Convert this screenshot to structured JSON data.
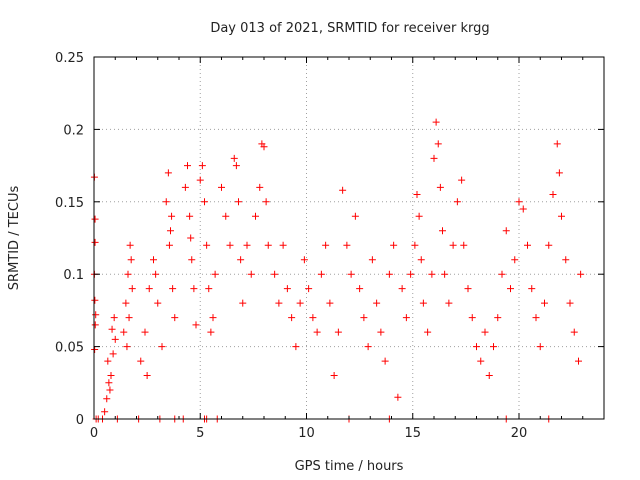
{
  "chart_data": {
    "type": "scatter",
    "title": "Day 013 of 2021, SRMTID for receiver krgg",
    "xlabel": "GPS time / hours",
    "ylabel": "SRMTID / TECUs",
    "xlim": [
      0,
      24
    ],
    "ylim": [
      0,
      0.25
    ],
    "grid": true,
    "marker": "+",
    "colors": {
      "marker": "#ff0000",
      "grid": "#a0a0a0",
      "axes": "#000000"
    },
    "x_ticks": [
      {
        "value": 0,
        "label": "0"
      },
      {
        "value": 5,
        "label": "5"
      },
      {
        "value": 10,
        "label": "10"
      },
      {
        "value": 15,
        "label": "15"
      },
      {
        "value": 20,
        "label": "20"
      }
    ],
    "y_ticks": [
      {
        "value": 0,
        "label": "0"
      },
      {
        "value": 0.05,
        "label": "0.05"
      },
      {
        "value": 0.1,
        "label": "0.1"
      },
      {
        "value": 0.15,
        "label": "0.15"
      },
      {
        "value": 0.2,
        "label": "0.2"
      },
      {
        "value": 0.25,
        "label": "0.25"
      }
    ],
    "series": [
      {
        "name": "SRMTID",
        "points": [
          [
            0.02,
            0.167
          ],
          [
            0.05,
            0.138
          ],
          [
            0.05,
            0.122
          ],
          [
            0.02,
            0.1
          ],
          [
            0.04,
            0.082
          ],
          [
            0.06,
            0.065
          ],
          [
            0.03,
            0.048
          ],
          [
            0.08,
            0.072
          ],
          [
            0.5,
            0.005
          ],
          [
            0.6,
            0.014
          ],
          [
            0.7,
            0.025
          ],
          [
            0.8,
            0.03
          ],
          [
            0.9,
            0.045
          ],
          [
            1.0,
            0.055
          ],
          [
            0.65,
            0.04
          ],
          [
            0.75,
            0.02
          ],
          [
            0.85,
            0.062
          ],
          [
            0.95,
            0.07
          ],
          [
            1.4,
            0.06
          ],
          [
            1.5,
            0.08
          ],
          [
            1.6,
            0.1
          ],
          [
            1.7,
            0.12
          ],
          [
            1.8,
            0.09
          ],
          [
            1.55,
            0.05
          ],
          [
            1.65,
            0.07
          ],
          [
            1.75,
            0.11
          ],
          [
            2.2,
            0.04
          ],
          [
            2.4,
            0.06
          ],
          [
            2.6,
            0.09
          ],
          [
            2.8,
            0.11
          ],
          [
            3.0,
            0.08
          ],
          [
            3.2,
            0.05
          ],
          [
            2.5,
            0.03
          ],
          [
            2.9,
            0.1
          ],
          [
            3.4,
            0.15
          ],
          [
            3.5,
            0.17
          ],
          [
            3.6,
            0.13
          ],
          [
            3.7,
            0.09
          ],
          [
            3.8,
            0.07
          ],
          [
            3.55,
            0.12
          ],
          [
            3.65,
            0.14
          ],
          [
            4.3,
            0.16
          ],
          [
            4.4,
            0.175
          ],
          [
            4.5,
            0.14
          ],
          [
            4.6,
            0.11
          ],
          [
            4.7,
            0.09
          ],
          [
            4.8,
            0.065
          ],
          [
            4.55,
            0.125
          ],
          [
            5.0,
            0.165
          ],
          [
            5.1,
            0.175
          ],
          [
            5.2,
            0.15
          ],
          [
            5.3,
            0.12
          ],
          [
            5.4,
            0.09
          ],
          [
            5.5,
            0.06
          ],
          [
            5.6,
            0.07
          ],
          [
            5.7,
            0.1
          ],
          [
            6.0,
            0.16
          ],
          [
            6.2,
            0.14
          ],
          [
            6.4,
            0.12
          ],
          [
            6.6,
            0.18
          ],
          [
            6.7,
            0.175
          ],
          [
            6.8,
            0.15
          ],
          [
            6.9,
            0.11
          ],
          [
            7.0,
            0.08
          ],
          [
            7.2,
            0.12
          ],
          [
            7.4,
            0.1
          ],
          [
            7.6,
            0.14
          ],
          [
            7.8,
            0.16
          ],
          [
            7.9,
            0.19
          ],
          [
            8.0,
            0.188
          ],
          [
            8.1,
            0.15
          ],
          [
            8.2,
            0.12
          ],
          [
            8.5,
            0.1
          ],
          [
            8.7,
            0.08
          ],
          [
            8.9,
            0.12
          ],
          [
            9.1,
            0.09
          ],
          [
            9.3,
            0.07
          ],
          [
            9.5,
            0.05
          ],
          [
            9.7,
            0.08
          ],
          [
            9.9,
            0.11
          ],
          [
            10.1,
            0.09
          ],
          [
            10.3,
            0.07
          ],
          [
            10.5,
            0.06
          ],
          [
            10.7,
            0.1
          ],
          [
            10.9,
            0.12
          ],
          [
            11.1,
            0.08
          ],
          [
            11.3,
            0.03
          ],
          [
            11.5,
            0.06
          ],
          [
            11.7,
            0.158
          ],
          [
            11.9,
            0.12
          ],
          [
            12.1,
            0.1
          ],
          [
            12.3,
            0.14
          ],
          [
            12.5,
            0.09
          ],
          [
            12.7,
            0.07
          ],
          [
            12.9,
            0.05
          ],
          [
            13.1,
            0.11
          ],
          [
            13.3,
            0.08
          ],
          [
            13.5,
            0.06
          ],
          [
            13.7,
            0.04
          ],
          [
            13.9,
            0.1
          ],
          [
            14.1,
            0.12
          ],
          [
            14.3,
            0.015
          ],
          [
            14.5,
            0.09
          ],
          [
            14.7,
            0.07
          ],
          [
            14.9,
            0.1
          ],
          [
            15.1,
            0.12
          ],
          [
            15.2,
            0.155
          ],
          [
            15.3,
            0.14
          ],
          [
            15.4,
            0.11
          ],
          [
            15.5,
            0.08
          ],
          [
            15.7,
            0.06
          ],
          [
            15.9,
            0.1
          ],
          [
            16.0,
            0.18
          ],
          [
            16.1,
            0.205
          ],
          [
            16.2,
            0.19
          ],
          [
            16.3,
            0.16
          ],
          [
            16.4,
            0.13
          ],
          [
            16.5,
            0.1
          ],
          [
            16.7,
            0.08
          ],
          [
            16.9,
            0.12
          ],
          [
            17.1,
            0.15
          ],
          [
            17.3,
            0.165
          ],
          [
            17.4,
            0.12
          ],
          [
            17.6,
            0.09
          ],
          [
            17.8,
            0.07
          ],
          [
            18.0,
            0.05
          ],
          [
            18.2,
            0.04
          ],
          [
            18.4,
            0.06
          ],
          [
            18.6,
            0.03
          ],
          [
            18.8,
            0.05
          ],
          [
            19.0,
            0.07
          ],
          [
            19.2,
            0.1
          ],
          [
            19.4,
            0.13
          ],
          [
            19.6,
            0.09
          ],
          [
            19.8,
            0.11
          ],
          [
            20.0,
            0.15
          ],
          [
            20.2,
            0.145
          ],
          [
            20.4,
            0.12
          ],
          [
            20.6,
            0.09
          ],
          [
            20.8,
            0.07
          ],
          [
            21.0,
            0.05
          ],
          [
            21.2,
            0.08
          ],
          [
            21.4,
            0.12
          ],
          [
            21.6,
            0.155
          ],
          [
            21.8,
            0.19
          ],
          [
            21.9,
            0.17
          ],
          [
            22.0,
            0.14
          ],
          [
            22.2,
            0.11
          ],
          [
            22.4,
            0.08
          ],
          [
            22.6,
            0.06
          ],
          [
            22.8,
            0.04
          ],
          [
            22.9,
            0.1
          ]
        ],
        "zero_values_x": [
          0.1,
          0.2,
          0.4,
          1.1,
          2.1,
          3.1,
          3.8,
          4.2,
          5.2,
          5.3,
          5.8,
          12.0,
          13.9,
          19.4,
          21.4
        ]
      }
    ]
  }
}
